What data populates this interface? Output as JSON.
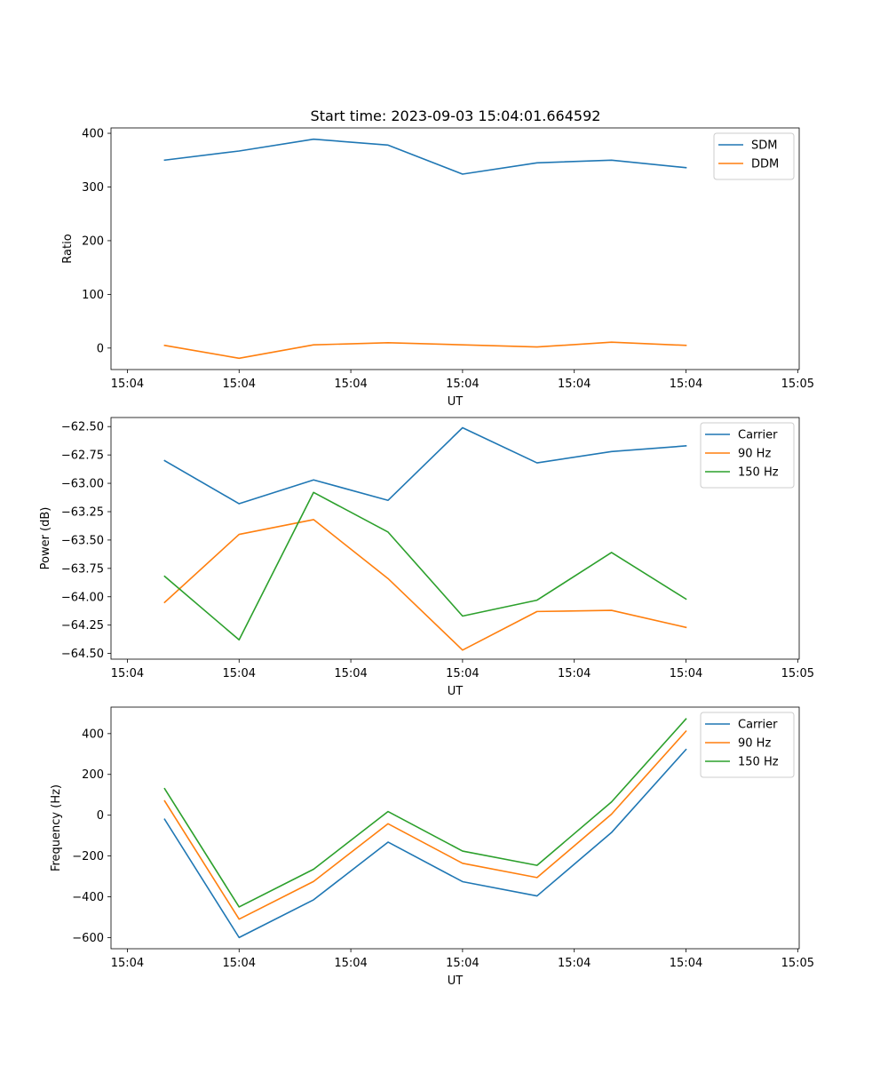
{
  "figure": {
    "title": "Start time: 2023-09-03 15:04:01.664592"
  },
  "colors": {
    "blue": "#1f77b4",
    "orange": "#ff7f0e",
    "green": "#2ca02c"
  },
  "chart_data": [
    {
      "type": "line",
      "title": "Start time: 2023-09-03 15:04:01.664592",
      "xlabel": "UT",
      "ylabel": "Ratio",
      "x": [
        1,
        2,
        3,
        4,
        5,
        6,
        7,
        8
      ],
      "xlim": [
        0.28,
        9.52
      ],
      "xticks": [
        0.5,
        2.0,
        3.5,
        5.0,
        6.5,
        8.0,
        9.5
      ],
      "xtick_labels": [
        "15:04",
        "15:04",
        "15:04",
        "15:04",
        "15:04",
        "15:04",
        "15:04"
      ],
      "xtick_last_label": "15:05",
      "ylim": [
        -40,
        410
      ],
      "yticks": [
        0,
        100,
        200,
        300,
        400
      ],
      "ytick_labels": [
        "0",
        "100",
        "200",
        "300",
        "400"
      ],
      "legend": "top-right",
      "series": [
        {
          "name": "SDM",
          "color": "#1f77b4",
          "values": [
            350,
            367,
            389,
            378,
            324,
            345,
            350,
            336
          ]
        },
        {
          "name": "DDM",
          "color": "#ff7f0e",
          "values": [
            5,
            -19,
            6,
            10,
            6,
            2,
            11,
            5
          ]
        }
      ]
    },
    {
      "type": "line",
      "title": "",
      "xlabel": "UT",
      "ylabel": "Power (dB)",
      "x": [
        1,
        2,
        3,
        4,
        5,
        6,
        7,
        8
      ],
      "xlim": [
        0.28,
        9.52
      ],
      "xticks": [
        0.5,
        2.0,
        3.5,
        5.0,
        6.5,
        8.0,
        9.5
      ],
      "xtick_labels": [
        "15:04",
        "15:04",
        "15:04",
        "15:04",
        "15:04",
        "15:04",
        "15:04"
      ],
      "xtick_last_label": "15:05",
      "ylim": [
        -64.55,
        -62.42
      ],
      "yticks": [
        -64.5,
        -64.25,
        -64.0,
        -63.75,
        -63.5,
        -63.25,
        -63.0,
        -62.75,
        -62.5
      ],
      "ytick_labels": [
        "−64.50",
        "−64.25",
        "−64.00",
        "−63.75",
        "−63.50",
        "−63.25",
        "−63.00",
        "−62.75",
        "−62.50"
      ],
      "legend": "top-right",
      "series": [
        {
          "name": "Carrier",
          "color": "#1f77b4",
          "values": [
            -62.8,
            -63.18,
            -62.97,
            -63.15,
            -62.51,
            -62.82,
            -62.72,
            -62.67
          ]
        },
        {
          "name": "90 Hz",
          "color": "#ff7f0e",
          "values": [
            -64.05,
            -63.45,
            -63.32,
            -63.84,
            -64.47,
            -64.13,
            -64.12,
            -64.27
          ]
        },
        {
          "name": "150 Hz",
          "color": "#2ca02c",
          "values": [
            -63.82,
            -64.38,
            -63.08,
            -63.43,
            -64.17,
            -64.03,
            -63.61,
            -64.02
          ]
        }
      ]
    },
    {
      "type": "line",
      "title": "",
      "xlabel": "UT",
      "ylabel": "Frequency (Hz)",
      "x": [
        1,
        2,
        3,
        4,
        5,
        6,
        7,
        8
      ],
      "xlim": [
        0.28,
        9.52
      ],
      "xticks": [
        0.5,
        2.0,
        3.5,
        5.0,
        6.5,
        8.0,
        9.5
      ],
      "xtick_labels": [
        "15:04",
        "15:04",
        "15:04",
        "15:04",
        "15:04",
        "15:04",
        "15:04"
      ],
      "xtick_last_label": "15:05",
      "ylim": [
        -655,
        530
      ],
      "yticks": [
        -600,
        -400,
        -200,
        0,
        200,
        400
      ],
      "ytick_labels": [
        "−600",
        "−400",
        "−200",
        "0",
        "200",
        "400"
      ],
      "legend": "top-right",
      "series": [
        {
          "name": "Carrier",
          "color": "#1f77b4",
          "values": [
            -20,
            -600,
            -415,
            -132,
            -326,
            -396,
            -85,
            322
          ]
        },
        {
          "name": "90 Hz",
          "color": "#ff7f0e",
          "values": [
            70,
            -510,
            -325,
            -42,
            -236,
            -306,
            5,
            412
          ]
        },
        {
          "name": "150 Hz",
          "color": "#2ca02c",
          "values": [
            130,
            -450,
            -265,
            18,
            -176,
            -246,
            65,
            472
          ]
        }
      ]
    }
  ]
}
